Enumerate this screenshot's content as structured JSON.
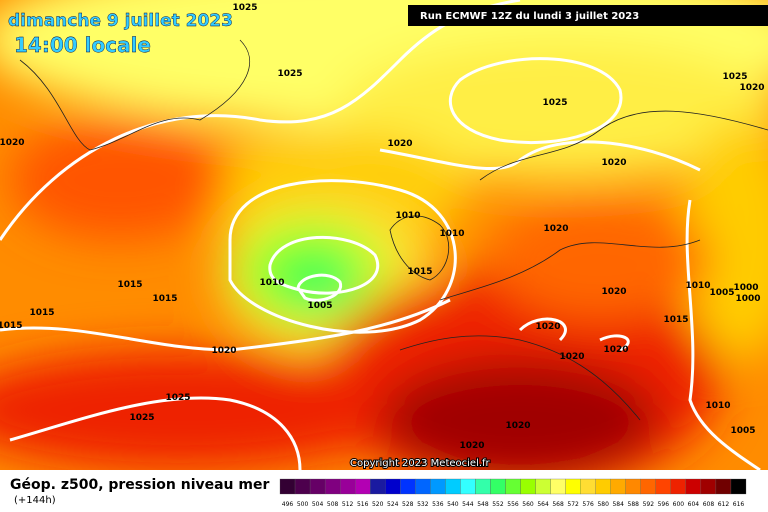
{
  "header": {
    "date": "dimanche 9 juillet 2023",
    "time": "14:00 locale",
    "run": "Run ECMWF 12Z du lundi 3 juillet 2023"
  },
  "isobar_labels": [
    "1025",
    "1025",
    "1025",
    "1020",
    "1020",
    "1010",
    "1010",
    "1010",
    "1005",
    "1015",
    "1015",
    "1015",
    "1015",
    "1015",
    "1020",
    "1025",
    "1025",
    "1020",
    "1020",
    "1020",
    "1020",
    "1020",
    "1020",
    "1020",
    "1020",
    "1015",
    "1010",
    "1005",
    "1000",
    "1000",
    "1010",
    "1005",
    "1025",
    "1020"
  ],
  "copyright": "Copyright 2023 Meteociel.fr",
  "legend": {
    "title": "Géop. z500, pression niveau mer",
    "subtitle": "(+144h)",
    "scale": [
      {
        "label": "496",
        "color": "#330033"
      },
      {
        "label": "500",
        "color": "#4d004d"
      },
      {
        "label": "504",
        "color": "#660066"
      },
      {
        "label": "508",
        "color": "#800080"
      },
      {
        "label": "512",
        "color": "#990099"
      },
      {
        "label": "516",
        "color": "#b300b3"
      },
      {
        "label": "520",
        "color": "#1a1aa0"
      },
      {
        "label": "524",
        "color": "#0000cc"
      },
      {
        "label": "528",
        "color": "#0033ff"
      },
      {
        "label": "532",
        "color": "#0066ff"
      },
      {
        "label": "536",
        "color": "#0099ff"
      },
      {
        "label": "540",
        "color": "#00ccff"
      },
      {
        "label": "544",
        "color": "#33ffff"
      },
      {
        "label": "548",
        "color": "#33ffaa"
      },
      {
        "label": "552",
        "color": "#33ff66"
      },
      {
        "label": "556",
        "color": "#66ff33"
      },
      {
        "label": "560",
        "color": "#99ff00"
      },
      {
        "label": "564",
        "color": "#ccff33"
      },
      {
        "label": "568",
        "color": "#ffff66"
      },
      {
        "label": "572",
        "color": "#ffff00"
      },
      {
        "label": "576",
        "color": "#ffdd33"
      },
      {
        "label": "580",
        "color": "#ffcc00"
      },
      {
        "label": "584",
        "color": "#ffaa00"
      },
      {
        "label": "588",
        "color": "#ff8800"
      },
      {
        "label": "592",
        "color": "#ff6600"
      },
      {
        "label": "596",
        "color": "#ff4400"
      },
      {
        "label": "600",
        "color": "#ee2200"
      },
      {
        "label": "604",
        "color": "#cc0000"
      },
      {
        "label": "608",
        "color": "#a00000"
      },
      {
        "label": "612",
        "color": "#700000"
      },
      {
        "label": "616",
        "color": "#000000"
      }
    ]
  }
}
